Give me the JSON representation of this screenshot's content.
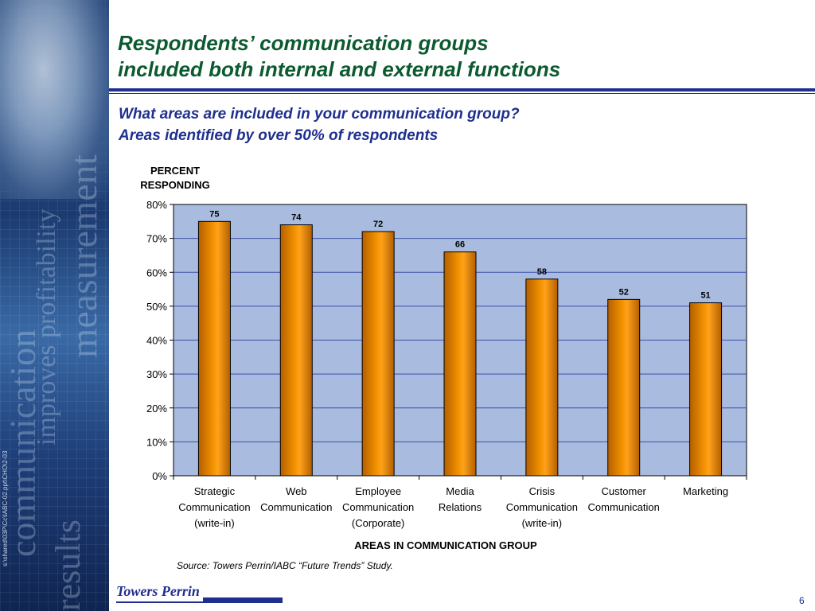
{
  "slide": {
    "title_lines": [
      "Respondents’ communication groups",
      "included both internal and external functions"
    ],
    "subtitle_lines": [
      "What areas are included in your communication group?",
      "Areas identified by over 50% of respondents"
    ],
    "side_path": "s:\\shared\\03P\\Cc\\IABC-02.ppt\\CHO\\2-03",
    "source": "Source: Towers Perrin/IABC “Future Trends” Study.",
    "logo": "Towers Perrin",
    "page_number": "6"
  },
  "chart_data": {
    "type": "bar",
    "title": "",
    "ylabel_lines": [
      "PERCENT",
      "RESPONDING"
    ],
    "xlabel": "AREAS IN COMMUNICATION GROUP",
    "categories": [
      [
        "Strategic",
        "Communication",
        "(write-in)"
      ],
      [
        "Web",
        "Communication"
      ],
      [
        "Employee",
        "Communication",
        "(Corporate)"
      ],
      [
        "Media",
        "Relations"
      ],
      [
        "Crisis",
        "Communication",
        "(write-in)"
      ],
      [
        "Customer",
        "Communication"
      ],
      [
        "Marketing"
      ]
    ],
    "values": [
      75,
      74,
      72,
      66,
      58,
      52,
      51
    ],
    "y_ticks": [
      "0%",
      "10%",
      "20%",
      "30%",
      "40%",
      "50%",
      "60%",
      "70%",
      "80%"
    ],
    "ylim": [
      0,
      80
    ],
    "grid": true,
    "colors": {
      "bar": "#f39200",
      "bar_dark": "#b35f00",
      "plot_bg": "#a9bce0",
      "grid": "#3a4ea8"
    }
  }
}
